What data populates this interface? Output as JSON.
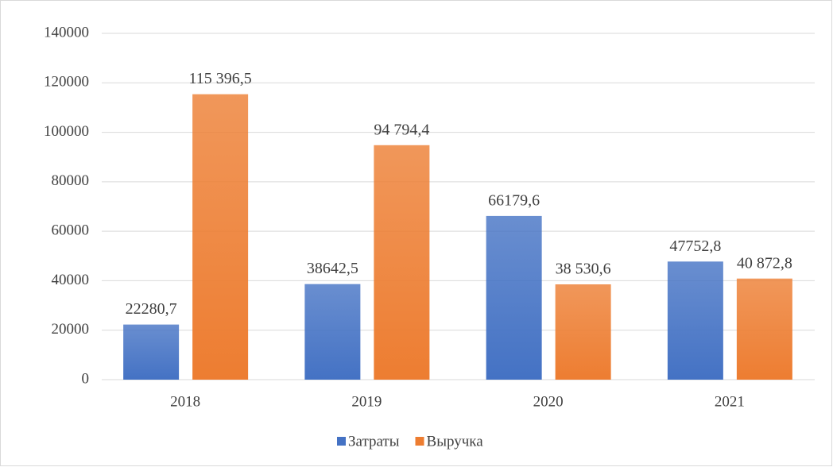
{
  "chart_data": {
    "type": "bar",
    "categories": [
      "2018",
      "2019",
      "2020",
      "2021"
    ],
    "series": [
      {
        "name": "Затраты",
        "color": "#4472c4",
        "values": [
          22280.7,
          38642.5,
          66179.6,
          47752.8
        ],
        "value_labels": [
          "22280,7",
          "38642,5",
          "66179,6",
          "47752,8"
        ]
      },
      {
        "name": "Выручка",
        "color": "#ed7d31",
        "values": [
          115396.5,
          94794.4,
          38530.6,
          40872.8
        ],
        "value_labels": [
          "115 396,5",
          "94 794,4",
          "38 530,6",
          "40 872,8"
        ]
      }
    ],
    "ylim": [
      0,
      140000
    ],
    "yticks": [
      0,
      20000,
      40000,
      60000,
      80000,
      100000,
      120000,
      140000
    ],
    "grid": true,
    "legend": "bottom"
  }
}
